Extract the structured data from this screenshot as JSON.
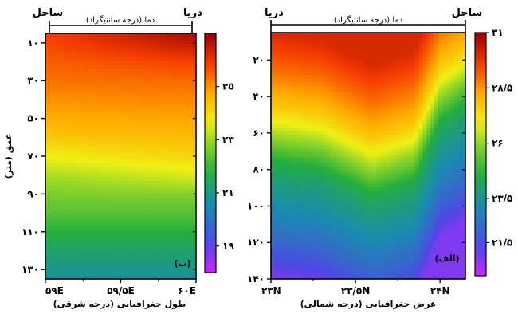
{
  "chart_data": [
    {
      "type": "heatmap",
      "panel_label": "(ب)",
      "top_title": "دما (درجه سانتیگراد)",
      "top_left_label": "ساحل",
      "top_right_label": "دریا",
      "xlabel": "طول جغرافیایی (درجه شرقی)",
      "ylabel": "عمق (متر)",
      "x_tick_labels": [
        "۵۹E",
        "۵۹/۵E",
        "۶۰E"
      ],
      "y_tick_labels": [
        "۱۰",
        "۳۰",
        "۵۰",
        "۷۰",
        "۹۰",
        "۱۱۰",
        "۱۳۰"
      ],
      "xlim": [
        59,
        60
      ],
      "ylim": [
        5,
        135
      ],
      "y_ticks": [
        10,
        30,
        50,
        70,
        90,
        110,
        130
      ],
      "colorbar": {
        "min": 18,
        "max": 27,
        "tick_values": [
          25,
          23,
          21,
          19
        ],
        "tick_labels": [
          "۲۵",
          "۲۳",
          "۲۱",
          "۱۹"
        ]
      },
      "depth_profile": {
        "depth": [
          5,
          10,
          20,
          30,
          40,
          50,
          60,
          70,
          80,
          85,
          90,
          95,
          100,
          110,
          120,
          130,
          135
        ],
        "temperature_west": [
          25.8,
          25.7,
          25.5,
          25.3,
          25.0,
          24.7,
          24.3,
          23.7,
          23.1,
          22.9,
          22.7,
          22.5,
          22.3,
          21.8,
          21.3,
          20.9,
          20.7
        ],
        "temperature_east": [
          26.8,
          26.5,
          25.8,
          25.4,
          25.1,
          24.8,
          24.5,
          24.1,
          23.5,
          23.2,
          22.8,
          22.5,
          22.3,
          21.8,
          21.3,
          20.9,
          20.7
        ]
      }
    },
    {
      "type": "heatmap",
      "panel_label": "(الف)",
      "top_title": "دما (درجه سانتیگراد)",
      "top_left_label": "دریا",
      "top_right_label": "ساحل",
      "xlabel": "عرض جغرافیایی (درجه شمالی)",
      "ylabel": "",
      "x_tick_labels": [
        "۲۳N",
        "۲۳/۵N",
        "۲۴N"
      ],
      "y_tick_labels": [
        "۲۰",
        "۴۰",
        "۶۰",
        "۸۰",
        "۱۰۰",
        "۱۲۰",
        "۱۴۰"
      ],
      "xlim": [
        23,
        24.15
      ],
      "ylim": [
        5,
        140
      ],
      "y_ticks": [
        20,
        40,
        60,
        80,
        100,
        120,
        140
      ],
      "colorbar": {
        "min": 20,
        "max": 31,
        "tick_values": [
          31,
          28.5,
          26,
          23.5,
          21.5
        ],
        "tick_labels": [
          "۳۱",
          "۲۸/۵",
          "۲۶",
          "۲۳/۵",
          "۲۱/۵"
        ]
      },
      "depth_profile": {
        "depth": [
          5,
          15,
          25,
          35,
          45,
          55,
          65,
          75,
          85,
          95,
          105,
          115,
          125,
          135,
          140
        ],
        "temperature": [
          30.0,
          29.5,
          29.0,
          28.4,
          27.7,
          26.8,
          25.7,
          24.6,
          23.9,
          23.4,
          22.9,
          22.4,
          21.8,
          21.1,
          20.8
        ]
      },
      "thermocline_offset": {
        "latitude": [
          23.0,
          23.3,
          23.6,
          23.85,
          24.0,
          24.15
        ],
        "depth_shift": [
          0,
          4,
          18,
          10,
          -22,
          -32
        ]
      }
    }
  ]
}
